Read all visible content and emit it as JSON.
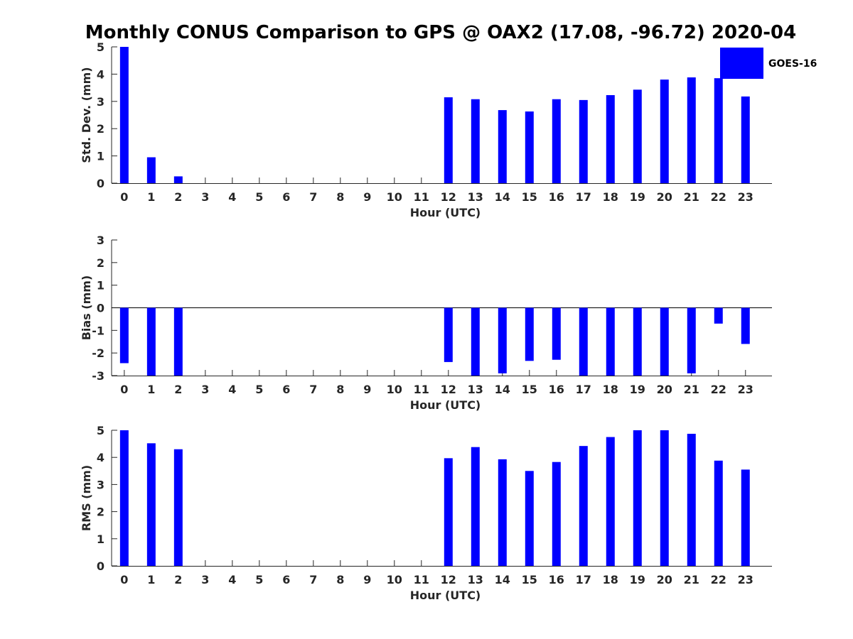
{
  "chart_data": {
    "type": "bar",
    "title": "Monthly CONUS Comparison to GPS @ OAX2 (17.08, -96.72) 2020-04",
    "legend": {
      "label": "GOES-16",
      "color": "#0000ff",
      "placement": "top-right"
    },
    "bar_color": "#0000ff",
    "categories": [
      "0",
      "1",
      "2",
      "3",
      "4",
      "5",
      "6",
      "7",
      "8",
      "9",
      "10",
      "11",
      "12",
      "13",
      "14",
      "15",
      "16",
      "17",
      "18",
      "19",
      "20",
      "21",
      "22",
      "23"
    ],
    "panels": [
      {
        "xlabel": "Hour (UTC)",
        "ylabel": "Std. Dev. (mm)",
        "ylim": [
          0,
          5
        ],
        "yticks": [
          "0",
          "1",
          "2",
          "3",
          "4",
          "5"
        ],
        "zero_line": false,
        "values": [
          5.0,
          0.95,
          0.25,
          null,
          null,
          null,
          null,
          null,
          null,
          null,
          null,
          null,
          3.15,
          3.08,
          2.68,
          2.63,
          3.08,
          3.05,
          3.23,
          3.43,
          3.8,
          3.88,
          3.85,
          3.18
        ]
      },
      {
        "xlabel": "Hour (UTC)",
        "ylabel": "Bias (mm)",
        "ylim": [
          -3,
          3
        ],
        "yticks": [
          "-3",
          "-2",
          "-1",
          "0",
          "1",
          "2",
          "3"
        ],
        "zero_line": true,
        "values": [
          -2.45,
          -3.0,
          -3.0,
          null,
          null,
          null,
          null,
          null,
          null,
          null,
          null,
          null,
          -2.4,
          -3.0,
          -2.9,
          -2.35,
          -2.3,
          -3.0,
          -3.0,
          -3.0,
          -3.0,
          -2.9,
          -0.7,
          -1.6
        ]
      },
      {
        "xlabel": "Hour (UTC)",
        "ylabel": "RMS (mm)",
        "ylim": [
          0,
          5
        ],
        "yticks": [
          "0",
          "1",
          "2",
          "3",
          "4",
          "5"
        ],
        "zero_line": false,
        "values": [
          5.0,
          4.52,
          4.3,
          null,
          null,
          null,
          null,
          null,
          null,
          null,
          null,
          null,
          3.97,
          4.38,
          3.93,
          3.5,
          3.83,
          4.42,
          4.75,
          5.0,
          5.0,
          4.87,
          3.88,
          3.55
        ]
      }
    ]
  }
}
